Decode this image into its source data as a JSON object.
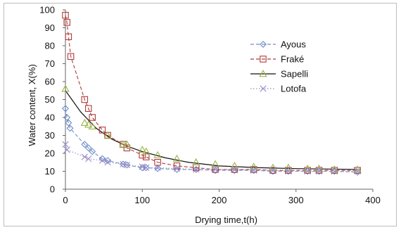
{
  "chart_data": {
    "type": "line",
    "xlabel": "Drying time,t(h)",
    "ylabel": "Water content, X(%)",
    "xlim": [
      0,
      400
    ],
    "ylim": [
      0,
      100
    ],
    "xticks": [
      0,
      100,
      200,
      300,
      400
    ],
    "yticks": [
      0,
      10,
      20,
      30,
      40,
      50,
      60,
      70,
      80,
      90,
      100
    ],
    "grid": false,
    "legend_position": "top-right",
    "series": [
      {
        "name": "Ayous",
        "color": "#6f8fc8",
        "line_style": "dashed",
        "marker": "diamond",
        "x": [
          0,
          2,
          4,
          6,
          25,
          30,
          35,
          48,
          55,
          75,
          80,
          100,
          105,
          120,
          145,
          170,
          195,
          220,
          245,
          270,
          290,
          315,
          330,
          350,
          380
        ],
        "y": [
          45,
          40,
          37,
          34,
          25,
          23,
          21,
          17,
          16,
          14,
          13.5,
          12,
          12,
          11.5,
          11,
          11,
          10.5,
          10.5,
          10.5,
          10,
          10,
          10,
          10,
          10,
          9.5
        ]
      },
      {
        "name": "Fraké",
        "color": "#b03a3a",
        "line_style": "dashed",
        "marker": "square",
        "x": [
          0,
          2,
          4,
          7,
          25,
          30,
          35,
          48,
          55,
          75,
          80,
          100,
          105,
          120,
          145,
          170,
          195,
          220,
          245,
          270,
          290,
          315,
          330,
          350,
          380
        ],
        "y": [
          97,
          93,
          85,
          74,
          50,
          45,
          40,
          33,
          30,
          25,
          23,
          19,
          18,
          15,
          13,
          12,
          11,
          11,
          11,
          10.5,
          10.5,
          10.5,
          10.5,
          10.5,
          10.5
        ]
      },
      {
        "name": "Sapelli",
        "color": "#9bb44a",
        "line_style": "solid",
        "line_color": "#111111",
        "marker": "triangle",
        "x": [
          0,
          25,
          30,
          35,
          55,
          75,
          80,
          100,
          105,
          120,
          145,
          170,
          195,
          220,
          245,
          270,
          290,
          315,
          330,
          350,
          380
        ],
        "y": [
          56,
          37,
          36,
          35,
          30,
          25,
          25,
          22,
          21,
          19,
          17,
          15,
          14,
          13,
          12.5,
          12,
          12,
          11.5,
          11.5,
          11,
          11
        ]
      },
      {
        "name": "Lotofa",
        "color": "#9a8cc7",
        "line_style": "dotted",
        "marker": "x",
        "x": [
          0,
          2,
          25,
          30,
          48,
          55,
          75,
          80,
          100,
          105,
          120,
          145,
          170,
          195,
          220,
          245,
          270,
          290,
          315,
          330,
          350,
          380
        ],
        "y": [
          25,
          22,
          18,
          17,
          16,
          15,
          14,
          13.5,
          12.5,
          12,
          12,
          11.5,
          11,
          11,
          11,
          10.5,
          10.5,
          10,
          10,
          10,
          10,
          10
        ]
      }
    ],
    "fit_curves": [
      {
        "series": "Sapelli",
        "color": "#111111",
        "style": "solid",
        "x": [
          0,
          20,
          40,
          60,
          80,
          100,
          130,
          160,
          200,
          250,
          300,
          350,
          380
        ],
        "y": [
          55,
          43,
          34,
          28,
          24,
          21,
          17.5,
          15,
          13,
          12,
          11.5,
          11.2,
          11
        ]
      }
    ]
  }
}
